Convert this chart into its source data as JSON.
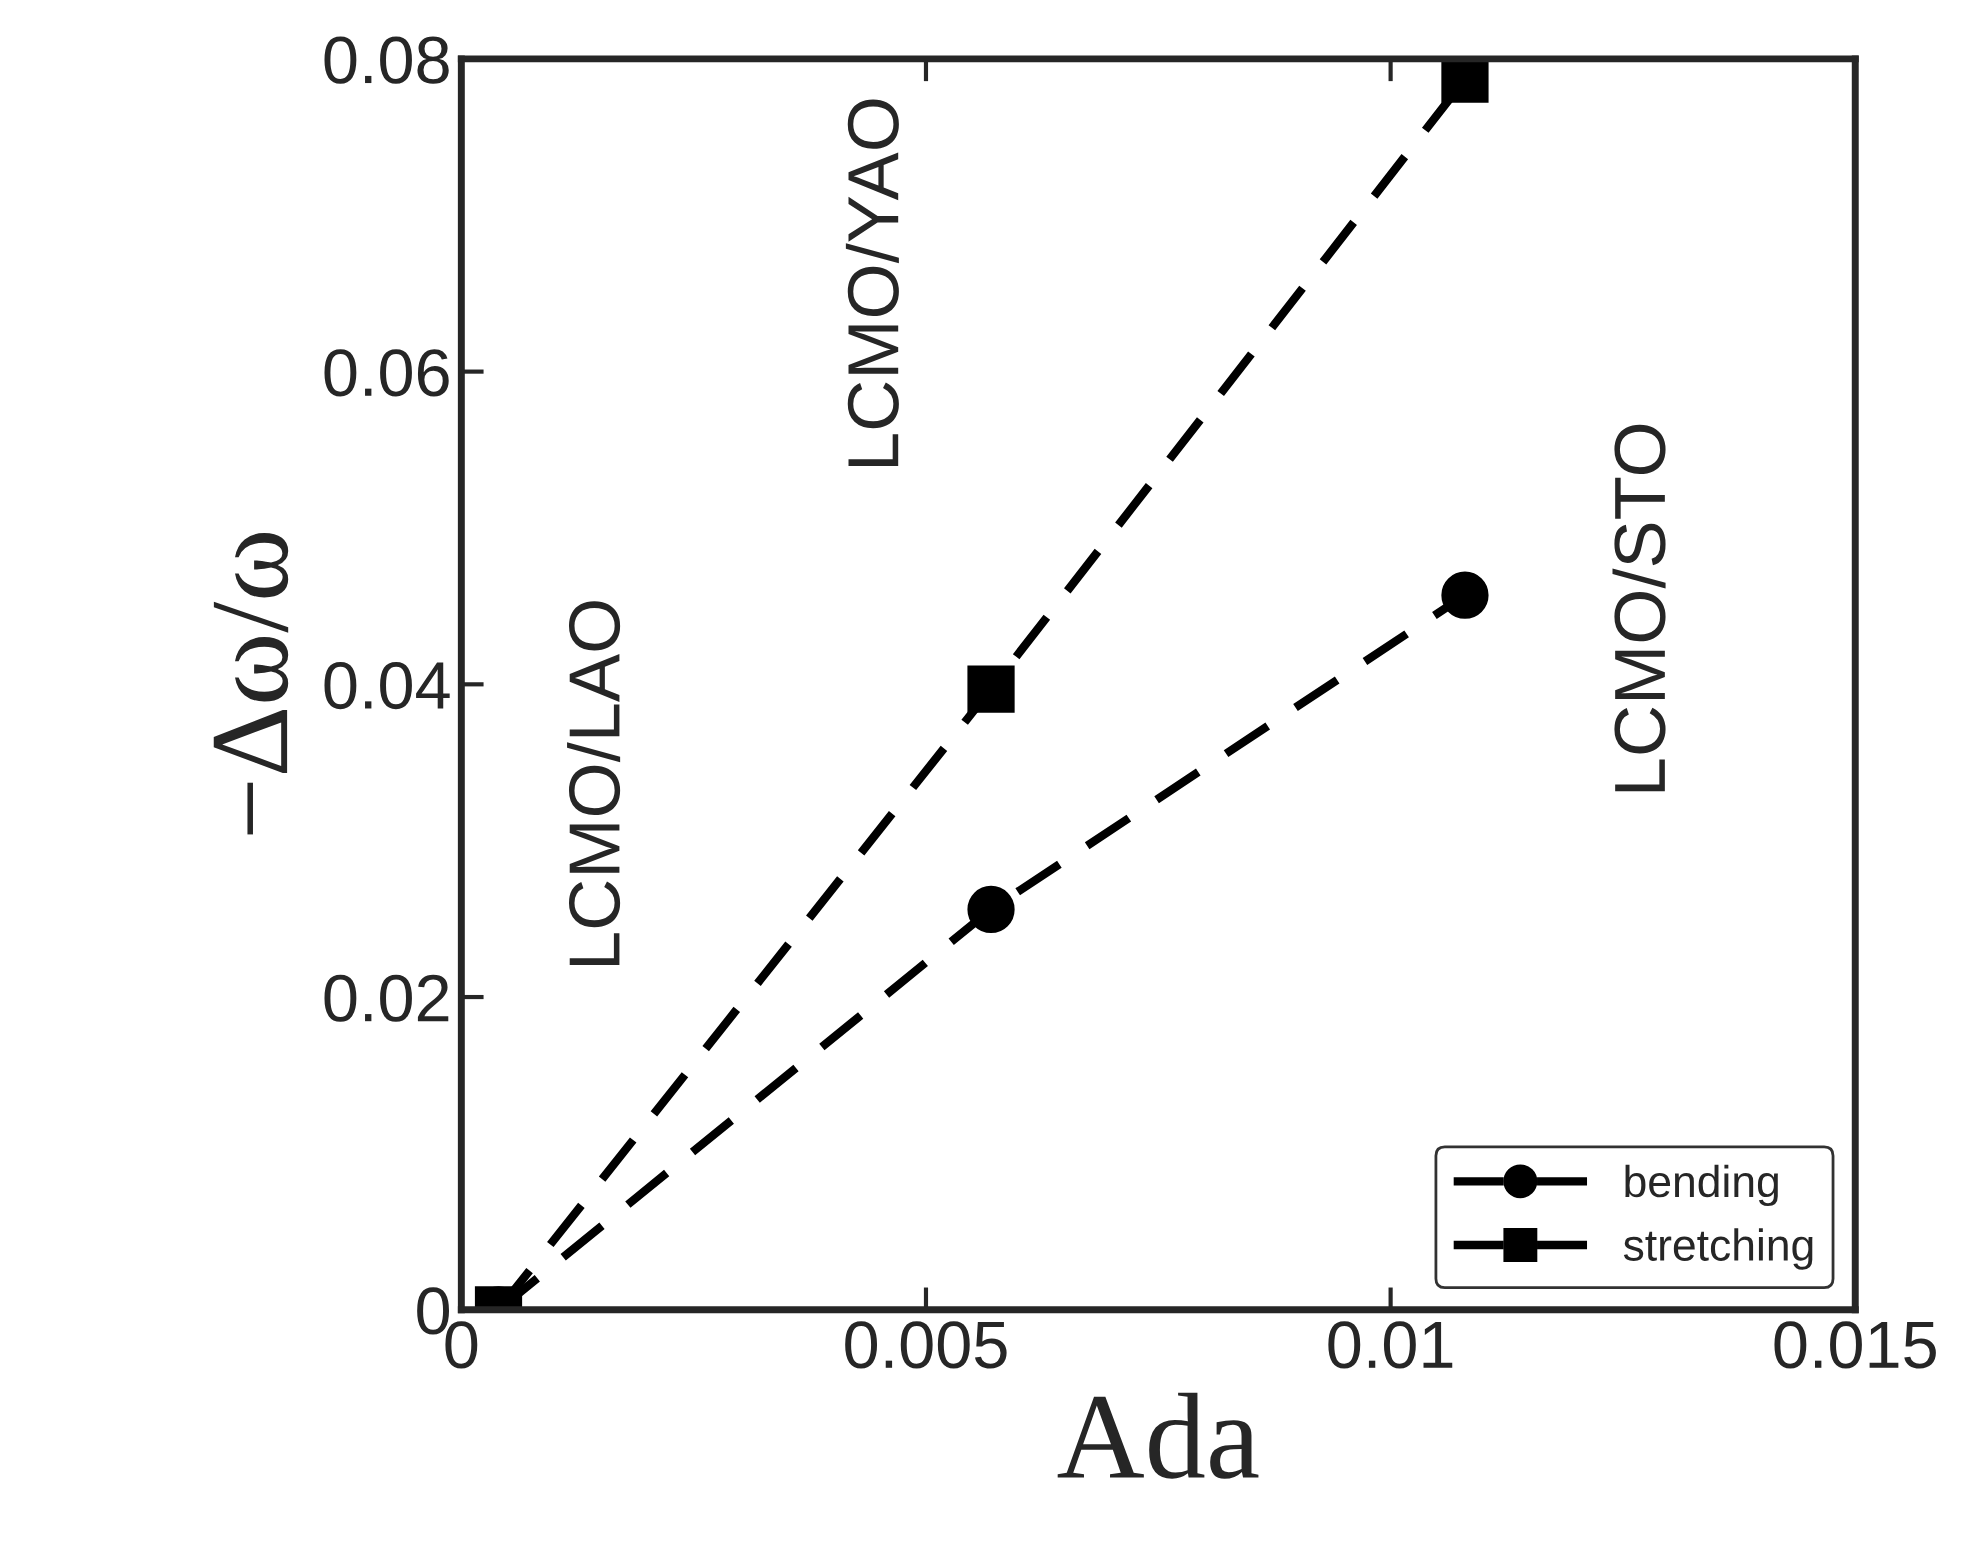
{
  "chart_data": {
    "type": "line",
    "xlabel": "Ada",
    "ylabel": "−Δω/ω",
    "xlim": [
      0,
      0.015
    ],
    "xticks": [
      0,
      0.005,
      0.01,
      0.015
    ],
    "ylim": [
      0,
      0.08
    ],
    "yticks": [
      0,
      0.02,
      0.04,
      0.06,
      0.08
    ],
    "series": [
      {
        "name": "bending",
        "color": "#000000",
        "marker": "circle",
        "x": [
          0.0004,
          0.0057,
          0.0108
        ],
        "values": [
          0,
          0.0256,
          0.0457
        ]
      },
      {
        "name": "stretching",
        "color": "#000000",
        "marker": "square",
        "x": [
          0.0004,
          0.0057,
          0.0108
        ],
        "values": [
          0,
          0.0397,
          0.0787
        ]
      }
    ],
    "line_style": "dashed",
    "grid": false,
    "legend": "bottom right",
    "annotations": [
      "LCMO/LAO",
      "LCMO/YAO",
      "LCMO/STO"
    ]
  }
}
